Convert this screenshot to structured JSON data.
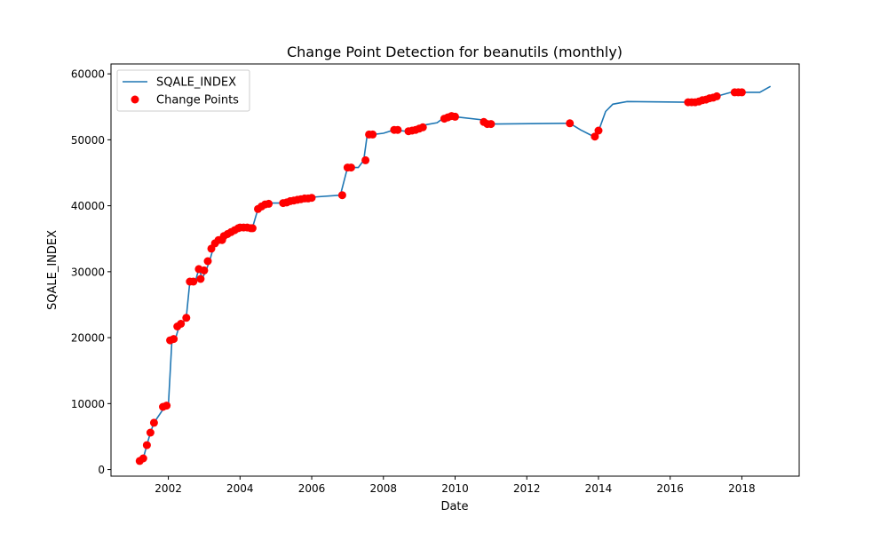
{
  "chart_data": {
    "type": "line",
    "title": "Change Point Detection for beanutils (monthly)",
    "xlabel": "Date",
    "ylabel": "SQALE_INDEX",
    "xlim": [
      2000.4,
      2019.6
    ],
    "ylim": [
      -1000,
      61500
    ],
    "xticks": [
      2002,
      2004,
      2006,
      2008,
      2010,
      2012,
      2014,
      2016,
      2018
    ],
    "xtick_labels": [
      "2002",
      "2004",
      "2006",
      "2008",
      "2010",
      "2012",
      "2014",
      "2016",
      "2018"
    ],
    "yticks": [
      0,
      10000,
      20000,
      30000,
      40000,
      50000,
      60000
    ],
    "ytick_labels": [
      "0",
      "10000",
      "20000",
      "30000",
      "40000",
      "50000",
      "60000"
    ],
    "grid": false,
    "legend": {
      "position": "top-left",
      "entries": [
        {
          "label": "SQALE_INDEX",
          "marker": "line"
        },
        {
          "label": "Change Points",
          "marker": "dot"
        }
      ]
    },
    "colors": {
      "line": "#1f77b4",
      "points": "#ff0000"
    },
    "series": [
      {
        "name": "SQALE_INDEX",
        "kind": "line",
        "x": [
          2001.2,
          2001.3,
          2001.4,
          2001.5,
          2001.6,
          2001.9,
          2002.0,
          2002.1,
          2002.2,
          2002.3,
          2002.4,
          2002.5,
          2002.6,
          2002.75,
          2002.85,
          2002.95,
          2003.05,
          2003.15,
          2003.25,
          2003.35,
          2003.5,
          2003.7,
          2003.9,
          2004.0,
          2004.2,
          2004.35,
          2004.5,
          2004.6,
          2004.8,
          2005.2,
          2005.5,
          2005.8,
          2006.0,
          2006.8,
          2007.0,
          2007.3,
          2007.45,
          2007.55,
          2007.7,
          2008.0,
          2008.3,
          2008.6,
          2008.9,
          2009.2,
          2009.5,
          2009.65,
          2009.8,
          2010.0,
          2010.8,
          2010.95,
          2011.2,
          2013.2,
          2013.5,
          2013.9,
          2014.0,
          2014.2,
          2014.4,
          2014.8,
          2016.5,
          2016.7,
          2017.0,
          2017.3,
          2017.7,
          2018.0,
          2018.5,
          2018.8
        ],
        "y": [
          1300,
          1700,
          3700,
          5600,
          7100,
          9500,
          9700,
          19600,
          19900,
          21700,
          22200,
          23100,
          28500,
          28500,
          30400,
          29000,
          30200,
          31600,
          33500,
          34500,
          34800,
          35700,
          36300,
          36700,
          36700,
          36700,
          39500,
          40200,
          40400,
          40400,
          40900,
          41100,
          41300,
          41600,
          45800,
          45800,
          46900,
          50800,
          50800,
          51000,
          51500,
          51300,
          51800,
          52300,
          52600,
          53200,
          53700,
          53500,
          53000,
          52400,
          52400,
          52500,
          51500,
          50400,
          51300,
          54300,
          55400,
          55800,
          55700,
          55700,
          56000,
          56600,
          57200,
          57200,
          57200,
          58100
        ]
      },
      {
        "name": "Change Points",
        "kind": "scatter",
        "x": [
          2001.2,
          2001.3,
          2001.4,
          2001.5,
          2001.6,
          2001.85,
          2001.95,
          2002.05,
          2002.15,
          2002.25,
          2002.35,
          2002.5,
          2002.6,
          2002.7,
          2002.85,
          2002.9,
          2003.0,
          2003.1,
          2003.2,
          2003.3,
          2003.4,
          2003.5,
          2003.55,
          2003.65,
          2003.75,
          2003.85,
          2003.95,
          2004.0,
          2004.1,
          2004.2,
          2004.3,
          2004.35,
          2004.5,
          2004.6,
          2004.7,
          2004.8,
          2005.2,
          2005.3,
          2005.4,
          2005.5,
          2005.6,
          2005.7,
          2005.8,
          2005.9,
          2006.0,
          2006.85,
          2007.0,
          2007.1,
          2007.5,
          2007.6,
          2007.7,
          2008.3,
          2008.4,
          2008.7,
          2008.8,
          2008.9,
          2009.0,
          2009.1,
          2009.7,
          2009.8,
          2009.9,
          2010.0,
          2010.8,
          2010.9,
          2011.0,
          2013.2,
          2013.9,
          2014.0,
          2016.5,
          2016.6,
          2016.7,
          2016.8,
          2016.9,
          2017.0,
          2017.1,
          2017.2,
          2017.3,
          2017.8,
          2017.9,
          2018.0
        ],
        "y": [
          1300,
          1700,
          3700,
          5600,
          7100,
          9500,
          9700,
          19600,
          19800,
          21700,
          22100,
          23000,
          28500,
          28500,
          30400,
          28900,
          30200,
          31600,
          33500,
          34300,
          34800,
          34800,
          35400,
          35700,
          36000,
          36300,
          36600,
          36700,
          36700,
          36700,
          36600,
          36600,
          39500,
          39900,
          40200,
          40300,
          40400,
          40500,
          40700,
          40800,
          40900,
          41000,
          41100,
          41100,
          41200,
          41600,
          45800,
          45800,
          46900,
          50800,
          50800,
          51500,
          51500,
          51300,
          51400,
          51500,
          51700,
          51900,
          53200,
          53400,
          53600,
          53500,
          52700,
          52400,
          52400,
          52500,
          50500,
          51400,
          55700,
          55700,
          55700,
          55800,
          56000,
          56100,
          56300,
          56400,
          56600,
          57200,
          57200,
          57200
        ]
      }
    ]
  }
}
